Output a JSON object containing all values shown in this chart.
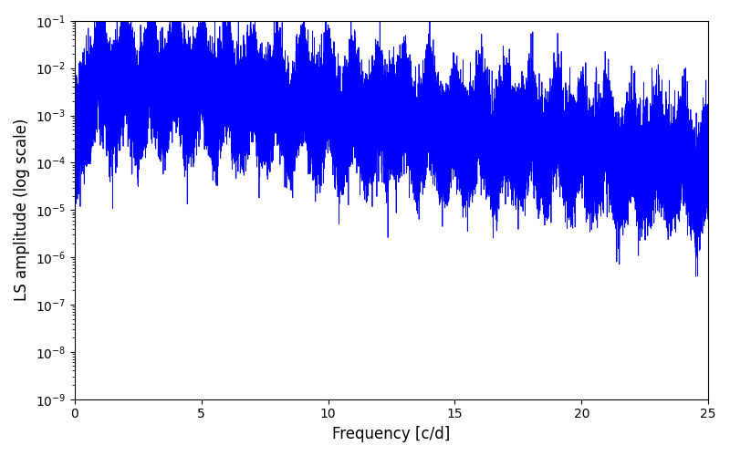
{
  "title": "",
  "xlabel": "Frequency [c/d]",
  "ylabel": "LS amplitude (log scale)",
  "xlim": [
    0,
    25
  ],
  "ylim": [
    1e-09,
    0.1
  ],
  "line_color": "#0000ff",
  "line_width": 0.6,
  "figsize": [
    8.0,
    5.0
  ],
  "dpi": 100,
  "yscale": "log",
  "freq_min": 0.0,
  "freq_max": 25.0,
  "n_points": 50000,
  "seed": 42
}
